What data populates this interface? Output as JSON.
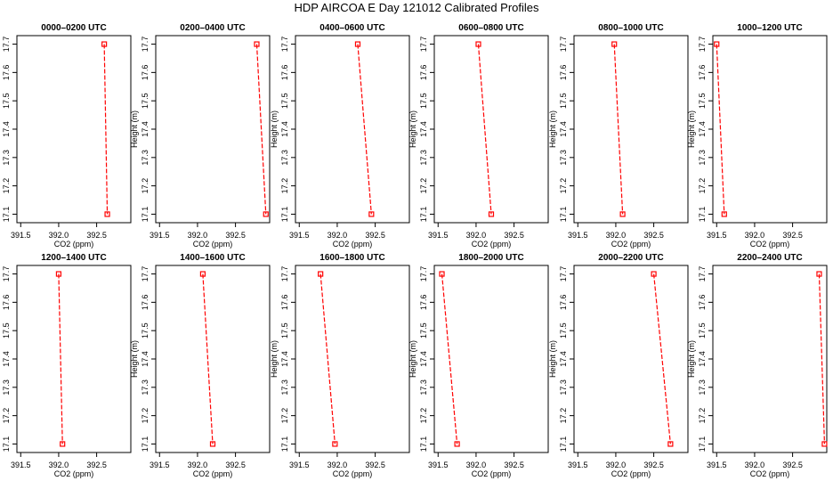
{
  "title": "HDP AIRCOA E  Day 121012  Calibrated Profiles",
  "colors": {
    "profile": "#ff0000",
    "axis": "#000000"
  },
  "chart_data": [
    {
      "type": "line",
      "title": "0000–0200 UTC",
      "xlabel": "CO2 (ppm)",
      "ylabel": "Height (m)",
      "xlim": [
        391.45,
        392.95
      ],
      "ylim": [
        17.07,
        17.73
      ],
      "xticks": [
        "391.5",
        "392.0",
        "392.5"
      ],
      "yticks": [
        "17.1",
        "17.2",
        "17.3",
        "17.4",
        "17.5",
        "17.6",
        "17.7"
      ],
      "points": [
        {
          "x": 392.6,
          "y": 17.7
        },
        {
          "x": 392.64,
          "y": 17.1
        }
      ]
    },
    {
      "type": "line",
      "title": "0200–0400 UTC",
      "xlabel": "CO2 (ppm)",
      "ylabel": "Height (m)",
      "xlim": [
        391.45,
        392.95
      ],
      "ylim": [
        17.07,
        17.73
      ],
      "xticks": [
        "391.5",
        "392.0",
        "392.5"
      ],
      "yticks": [
        "17.1",
        "17.2",
        "17.3",
        "17.4",
        "17.5",
        "17.6",
        "17.7"
      ],
      "points": [
        {
          "x": 392.78,
          "y": 17.7
        },
        {
          "x": 392.9,
          "y": 17.1
        }
      ]
    },
    {
      "type": "line",
      "title": "0400–0600 UTC",
      "xlabel": "CO2 (ppm)",
      "ylabel": "Height (m)",
      "xlim": [
        391.45,
        392.95
      ],
      "ylim": [
        17.07,
        17.73
      ],
      "xticks": [
        "391.5",
        "392.0",
        "392.5"
      ],
      "yticks": [
        "17.1",
        "17.2",
        "17.3",
        "17.4",
        "17.5",
        "17.6",
        "17.7"
      ],
      "points": [
        {
          "x": 392.27,
          "y": 17.7
        },
        {
          "x": 392.45,
          "y": 17.1
        }
      ]
    },
    {
      "type": "line",
      "title": "0600–0800 UTC",
      "xlabel": "CO2 (ppm)",
      "ylabel": "Height (m)",
      "xlim": [
        391.45,
        392.95
      ],
      "ylim": [
        17.07,
        17.73
      ],
      "xticks": [
        "391.5",
        "392.0",
        "392.5"
      ],
      "yticks": [
        "17.1",
        "17.2",
        "17.3",
        "17.4",
        "17.5",
        "17.6",
        "17.7"
      ],
      "points": [
        {
          "x": 392.03,
          "y": 17.7
        },
        {
          "x": 392.2,
          "y": 17.1
        }
      ]
    },
    {
      "type": "line",
      "title": "0800–1000 UTC",
      "xlabel": "CO2 (ppm)",
      "ylabel": "Height (m)",
      "xlim": [
        391.45,
        392.95
      ],
      "ylim": [
        17.07,
        17.73
      ],
      "xticks": [
        "391.5",
        "392.0",
        "392.5"
      ],
      "yticks": [
        "17.1",
        "17.2",
        "17.3",
        "17.4",
        "17.5",
        "17.6",
        "17.7"
      ],
      "points": [
        {
          "x": 391.98,
          "y": 17.7
        },
        {
          "x": 392.09,
          "y": 17.1
        }
      ]
    },
    {
      "type": "line",
      "title": "1000–1200 UTC",
      "xlabel": "CO2 (ppm)",
      "ylabel": "Height (m)",
      "xlim": [
        391.45,
        392.95
      ],
      "ylim": [
        17.07,
        17.73
      ],
      "xticks": [
        "391.5",
        "392.0",
        "392.5"
      ],
      "yticks": [
        "17.1",
        "17.2",
        "17.3",
        "17.4",
        "17.5",
        "17.6",
        "17.7"
      ],
      "points": [
        {
          "x": 391.5,
          "y": 17.7
        },
        {
          "x": 391.6,
          "y": 17.1
        }
      ]
    },
    {
      "type": "line",
      "title": "1200–1400 UTC",
      "xlabel": "CO2 (ppm)",
      "ylabel": "Height (m)",
      "xlim": [
        391.45,
        392.95
      ],
      "ylim": [
        17.07,
        17.73
      ],
      "xticks": [
        "391.5",
        "392.0",
        "392.5"
      ],
      "yticks": [
        "17.1",
        "17.2",
        "17.3",
        "17.4",
        "17.5",
        "17.6",
        "17.7"
      ],
      "points": [
        {
          "x": 392.0,
          "y": 17.7
        },
        {
          "x": 392.05,
          "y": 17.1
        }
      ]
    },
    {
      "type": "line",
      "title": "1400–1600 UTC",
      "xlabel": "CO2 (ppm)",
      "ylabel": "Height (m)",
      "xlim": [
        391.45,
        392.95
      ],
      "ylim": [
        17.07,
        17.73
      ],
      "xticks": [
        "391.5",
        "392.0",
        "392.5"
      ],
      "yticks": [
        "17.1",
        "17.2",
        "17.3",
        "17.4",
        "17.5",
        "17.6",
        "17.7"
      ],
      "points": [
        {
          "x": 392.07,
          "y": 17.7
        },
        {
          "x": 392.2,
          "y": 17.1
        }
      ]
    },
    {
      "type": "line",
      "title": "1600–1800 UTC",
      "xlabel": "CO2 (ppm)",
      "ylabel": "Height (m)",
      "xlim": [
        391.45,
        392.95
      ],
      "ylim": [
        17.07,
        17.73
      ],
      "xticks": [
        "391.5",
        "392.0",
        "392.5"
      ],
      "yticks": [
        "17.1",
        "17.2",
        "17.3",
        "17.4",
        "17.5",
        "17.6",
        "17.7"
      ],
      "points": [
        {
          "x": 391.78,
          "y": 17.7
        },
        {
          "x": 391.97,
          "y": 17.1
        }
      ]
    },
    {
      "type": "line",
      "title": "1800–2000 UTC",
      "xlabel": "CO2 (ppm)",
      "ylabel": "Height (m)",
      "xlim": [
        391.45,
        392.95
      ],
      "ylim": [
        17.07,
        17.73
      ],
      "xticks": [
        "391.5",
        "392.0",
        "392.5"
      ],
      "yticks": [
        "17.1",
        "17.2",
        "17.3",
        "17.4",
        "17.5",
        "17.6",
        "17.7"
      ],
      "points": [
        {
          "x": 391.55,
          "y": 17.7
        },
        {
          "x": 391.75,
          "y": 17.1
        }
      ]
    },
    {
      "type": "line",
      "title": "2000–2200 UTC",
      "xlabel": "CO2 (ppm)",
      "ylabel": "Height (m)",
      "xlim": [
        391.45,
        392.95
      ],
      "ylim": [
        17.07,
        17.73
      ],
      "xticks": [
        "391.5",
        "392.0",
        "392.5"
      ],
      "yticks": [
        "17.1",
        "17.2",
        "17.3",
        "17.4",
        "17.5",
        "17.6",
        "17.7"
      ],
      "points": [
        {
          "x": 392.5,
          "y": 17.7
        },
        {
          "x": 392.72,
          "y": 17.1
        }
      ]
    },
    {
      "type": "line",
      "title": "2200–2400 UTC",
      "xlabel": "CO2 (ppm)",
      "ylabel": "Height (m)",
      "xlim": [
        391.45,
        392.95
      ],
      "ylim": [
        17.07,
        17.73
      ],
      "xticks": [
        "391.5",
        "392.0",
        "392.5"
      ],
      "yticks": [
        "17.1",
        "17.2",
        "17.3",
        "17.4",
        "17.5",
        "17.6",
        "17.7"
      ],
      "points": [
        {
          "x": 392.85,
          "y": 17.7
        },
        {
          "x": 392.92,
          "y": 17.1
        }
      ]
    }
  ]
}
